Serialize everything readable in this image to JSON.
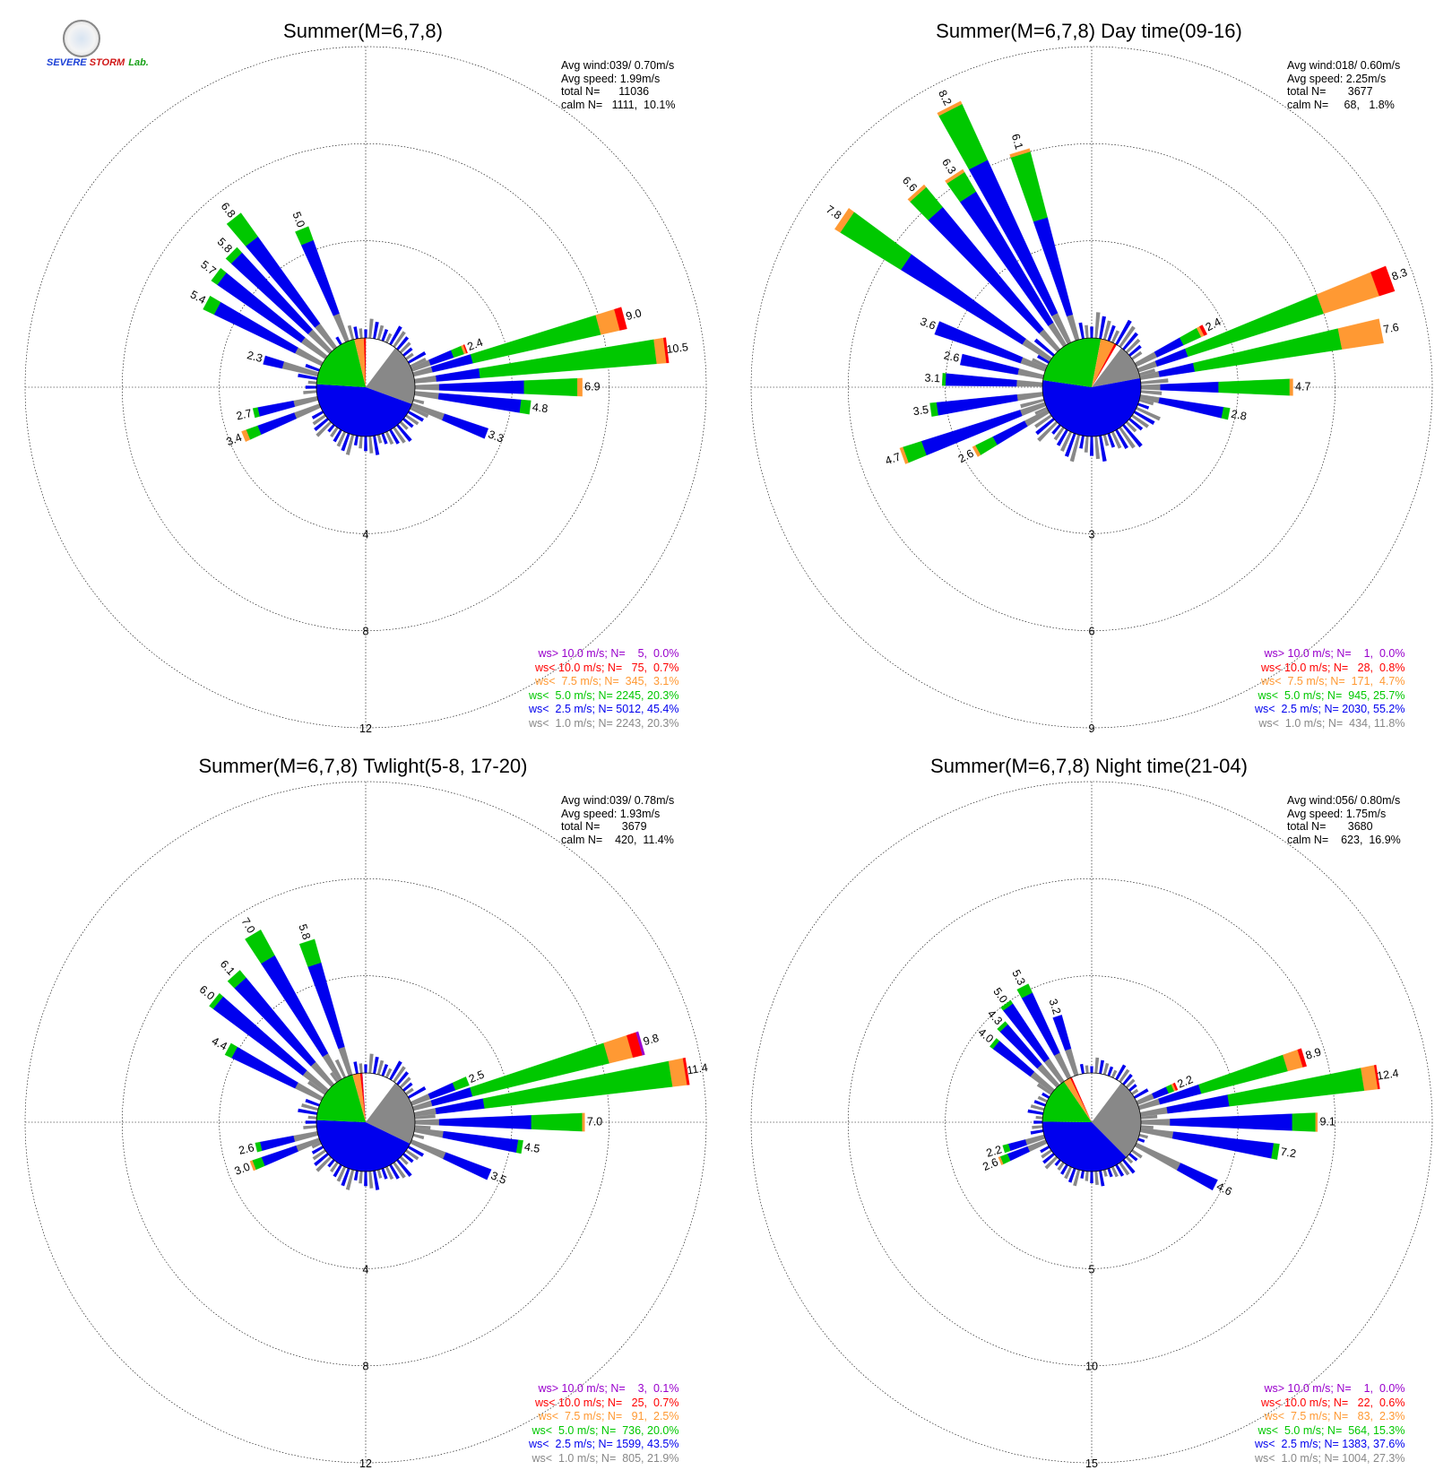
{
  "logo": {
    "text_severe": "SEVERE",
    "text_storm": "STORM",
    "text_lab": "Lab."
  },
  "colors": {
    "calm": "#888888",
    "ws_lt_1": "#888888",
    "ws_lt_2_5": "#0000ee",
    "ws_lt_5": "#00c800",
    "ws_lt_7_5": "#ff9933",
    "ws_lt_10": "#ff0000",
    "ws_gt_10": "#9900cc",
    "grid": "#000000"
  },
  "chart_data": [
    {
      "type": "windrose",
      "title": "Summer(M=6,7,8)",
      "stats": [
        "Avg wind:039/ 0.70m/s",
        "Avg speed: 1.99m/s",
        "total N=      11036",
        "calm N=   1111,  10.1%"
      ],
      "ring_labels": [
        "4",
        "8",
        "12"
      ],
      "ring_values": [
        4,
        8,
        12
      ],
      "calm_pie": [
        {
          "class": "ws<1.0",
          "percent": 20.3
        },
        {
          "class": "ws<2.5",
          "percent": 45.4
        },
        {
          "class": "ws<5.0",
          "percent": 20.3
        },
        {
          "class": "ws<7.5",
          "percent": 3.1
        },
        {
          "class": "ws<10.0",
          "percent": 0.7
        },
        {
          "class": "ws>10.0",
          "percent": 0.0
        }
      ],
      "sectors": [
        {
          "dir": 69,
          "total": 2.4,
          "label": "2.4",
          "parts": [
            0.8,
            1.0,
            0.45,
            0.1,
            0.05,
            0
          ]
        },
        {
          "dir": 75,
          "total": 9.0,
          "label": "9.0",
          "parts": [
            0.8,
            1.7,
            5.4,
            0.8,
            0.3,
            0
          ]
        },
        {
          "dir": 83,
          "total": 10.5,
          "label": "10.5",
          "parts": [
            0.9,
            1.8,
            7.3,
            0.4,
            0.1,
            0
          ]
        },
        {
          "dir": 90,
          "total": 6.9,
          "label": "6.9",
          "parts": [
            1.0,
            3.5,
            2.2,
            0.2,
            0,
            0
          ]
        },
        {
          "dir": 97,
          "total": 4.8,
          "label": "4.8",
          "parts": [
            1.0,
            3.4,
            0.4,
            0,
            0,
            0
          ]
        },
        {
          "dir": 111,
          "total": 3.3,
          "label": "3.3",
          "parts": [
            1.4,
            1.9,
            0,
            0,
            0,
            0
          ]
        },
        {
          "dir": 322,
          "total": 6.8,
          "label": "6.8",
          "parts": [
            1.2,
            4.4,
            1.2,
            0,
            0,
            0
          ]
        },
        {
          "dir": 338,
          "total": 5.0,
          "label": "5.0",
          "parts": [
            1.2,
            3.2,
            0.6,
            0,
            0,
            0
          ]
        },
        {
          "dir": 315,
          "total": 5.8,
          "label": "5.8",
          "parts": [
            1.2,
            4.3,
            0.3,
            0,
            0,
            0
          ]
        },
        {
          "dir": 307,
          "total": 5.7,
          "label": "5.7",
          "parts": [
            1.2,
            4.2,
            0.3,
            0,
            0,
            0
          ]
        },
        {
          "dir": 298,
          "total": 5.4,
          "label": "5.4",
          "parts": [
            1.2,
            3.7,
            0.5,
            0,
            0,
            0
          ]
        },
        {
          "dir": 285,
          "total": 2.3,
          "label": "2.3",
          "parts": [
            1.5,
            0.8,
            0,
            0,
            0,
            0
          ]
        },
        {
          "dir": 257,
          "total": 2.7,
          "label": "2.7",
          "parts": [
            1.0,
            1.5,
            0.2,
            0,
            0,
            0
          ]
        },
        {
          "dir": 248,
          "total": 3.4,
          "label": "3.4",
          "parts": [
            1.1,
            1.6,
            0.5,
            0.2,
            0,
            0
          ]
        }
      ],
      "legend": [
        {
          "text": "ws> 10.0 m/s; N=    5,  0.0%",
          "color": "ws_gt_10"
        },
        {
          "text": "ws< 10.0 m/s; N=   75,  0.7%",
          "color": "ws_lt_10"
        },
        {
          "text": "ws<  7.5 m/s; N=  345,  3.1%",
          "color": "ws_lt_7_5"
        },
        {
          "text": "ws<  5.0 m/s; N= 2245, 20.3%",
          "color": "ws_lt_5"
        },
        {
          "text": "ws<  2.5 m/s; N= 5012, 45.4%",
          "color": "ws_lt_2_5"
        },
        {
          "text": "ws<  1.0 m/s; N= 2243, 20.3%",
          "color": "ws_lt_1"
        }
      ]
    },
    {
      "type": "windrose",
      "title": "Summer(M=6,7,8) Day time(09-16)",
      "stats": [
        "Avg wind:018/ 0.60m/s",
        "Avg speed: 2.25m/s",
        "total N=       3677",
        "calm N=     68,   1.8%"
      ],
      "ring_labels": [
        "3",
        "6",
        "9"
      ],
      "ring_values": [
        3,
        6,
        9
      ],
      "calm_pie": [
        {
          "class": "ws<1.0",
          "percent": 11.8
        },
        {
          "class": "ws<2.5",
          "percent": 55.2
        },
        {
          "class": "ws<5.0",
          "percent": 25.7
        },
        {
          "class": "ws<7.5",
          "percent": 4.7
        },
        {
          "class": "ws<10.0",
          "percent": 0.8
        },
        {
          "class": "ws>10.0",
          "percent": 0.0
        }
      ],
      "sectors": [
        {
          "dir": 63,
          "total": 2.4,
          "label": "2.4",
          "parts": [
            0.7,
            0.9,
            0.6,
            0.1,
            0.1,
            0
          ]
        },
        {
          "dir": 70,
          "total": 8.3,
          "label": "8.3",
          "parts": [
            0.6,
            1.0,
            4.4,
            1.8,
            0.5,
            0
          ]
        },
        {
          "dir": 79,
          "total": 7.6,
          "label": "7.6",
          "parts": [
            0.6,
            1.1,
            4.6,
            1.3,
            0,
            0
          ]
        },
        {
          "dir": 90,
          "total": 4.7,
          "label": "4.7",
          "parts": [
            0.6,
            1.8,
            2.2,
            0.1,
            0,
            0
          ]
        },
        {
          "dir": 101,
          "total": 2.8,
          "label": "2.8",
          "parts": [
            0.6,
            2.0,
            0.2,
            0,
            0,
            0
          ]
        },
        {
          "dir": 333,
          "total": 8.2,
          "label": "8.2",
          "parts": [
            1.0,
            5.2,
            1.9,
            0.1,
            0,
            0
          ]
        },
        {
          "dir": 343,
          "total": 6.1,
          "label": "6.1",
          "parts": [
            0.8,
            3.1,
            2.1,
            0.1,
            0,
            0
          ]
        },
        {
          "dir": 327,
          "total": 6.3,
          "label": "6.3",
          "parts": [
            0.8,
            4.7,
            0.7,
            0.1,
            0,
            0
          ]
        },
        {
          "dir": 318,
          "total": 6.6,
          "label": "6.6",
          "parts": [
            0.8,
            4.9,
            0.8,
            0.1,
            0,
            0
          ]
        },
        {
          "dir": 304,
          "total": 7.8,
          "label": "7.8",
          "parts": [
            1.0,
            4.4,
            2.2,
            0.2,
            0,
            0
          ]
        },
        {
          "dir": 291,
          "total": 3.6,
          "label": "3.6",
          "parts": [
            0.8,
            2.8,
            0,
            0,
            0,
            0
          ]
        },
        {
          "dir": 282,
          "total": 2.6,
          "label": "2.6",
          "parts": [
            0.8,
            1.8,
            0,
            0,
            0,
            0
          ]
        },
        {
          "dir": 273,
          "total": 3.1,
          "label": "3.1",
          "parts": [
            0.8,
            2.2,
            0.1,
            0,
            0,
            0
          ]
        },
        {
          "dir": 262,
          "total": 3.5,
          "label": "3.5",
          "parts": [
            0.8,
            2.5,
            0.2,
            0,
            0,
            0
          ]
        },
        {
          "dir": 250,
          "total": 4.7,
          "label": "4.7",
          "parts": [
            0.8,
            3.2,
            0.6,
            0.1,
            0,
            0
          ]
        },
        {
          "dir": 241,
          "total": 2.6,
          "label": "2.6",
          "parts": [
            0.8,
            1.1,
            0.6,
            0.1,
            0,
            0
          ]
        }
      ],
      "legend": [
        {
          "text": "ws> 10.0 m/s; N=    1,  0.0%",
          "color": "ws_gt_10"
        },
        {
          "text": "ws< 10.0 m/s; N=   28,  0.8%",
          "color": "ws_lt_10"
        },
        {
          "text": "ws<  7.5 m/s; N=  171,  4.7%",
          "color": "ws_lt_7_5"
        },
        {
          "text": "ws<  5.0 m/s; N=  945, 25.7%",
          "color": "ws_lt_5"
        },
        {
          "text": "ws<  2.5 m/s; N= 2030, 55.2%",
          "color": "ws_lt_2_5"
        },
        {
          "text": "ws<  1.0 m/s; N=  434, 11.8%",
          "color": "ws_lt_1"
        }
      ]
    },
    {
      "type": "windrose",
      "title": "Summer(M=6,7,8) Twlight(5-8, 17-20)",
      "stats": [
        "Avg wind:039/ 0.78m/s",
        "Avg speed: 1.93m/s",
        "total N=       3679",
        "calm N=    420,  11.4%"
      ],
      "ring_labels": [
        "4",
        "8",
        "12"
      ],
      "ring_values": [
        4,
        8,
        12
      ],
      "calm_pie": [
        {
          "class": "ws<1.0",
          "percent": 21.9
        },
        {
          "class": "ws<2.5",
          "percent": 43.5
        },
        {
          "class": "ws<5.0",
          "percent": 20.0
        },
        {
          "class": "ws<7.5",
          "percent": 2.5
        },
        {
          "class": "ws<10.0",
          "percent": 0.7
        },
        {
          "class": "ws>10.0",
          "percent": 0.1
        }
      ],
      "sectors": [
        {
          "dir": 68,
          "total": 2.5,
          "label": "2.5",
          "parts": [
            0.8,
            1.1,
            0.6,
            0,
            0,
            0
          ]
        },
        {
          "dir": 74,
          "total": 9.8,
          "label": "9.8",
          "parts": [
            0.8,
            1.7,
            5.8,
            1.0,
            0.4,
            0.1
          ]
        },
        {
          "dir": 81,
          "total": 11.4,
          "label": "11.4",
          "parts": [
            0.9,
            2.0,
            7.8,
            0.6,
            0.1,
            0
          ]
        },
        {
          "dir": 90,
          "total": 7.0,
          "label": "7.0",
          "parts": [
            1.0,
            3.8,
            2.1,
            0.1,
            0,
            0
          ]
        },
        {
          "dir": 99,
          "total": 4.5,
          "label": "4.5",
          "parts": [
            1.2,
            3.1,
            0.2,
            0,
            0,
            0
          ]
        },
        {
          "dir": 113,
          "total": 3.5,
          "label": "3.5",
          "parts": [
            1.5,
            2.0,
            0,
            0,
            0,
            0
          ]
        },
        {
          "dir": 329,
          "total": 7.0,
          "label": "7.0",
          "parts": [
            1.2,
            4.6,
            1.2,
            0,
            0,
            0
          ]
        },
        {
          "dir": 342,
          "total": 5.8,
          "label": "5.8",
          "parts": [
            1.2,
            3.6,
            1.0,
            0,
            0,
            0
          ]
        },
        {
          "dir": 318,
          "total": 6.1,
          "label": "6.1",
          "parts": [
            1.2,
            4.5,
            0.4,
            0,
            0,
            0
          ]
        },
        {
          "dir": 309,
          "total": 6.0,
          "label": "6.0",
          "parts": [
            1.2,
            4.6,
            0.2,
            0,
            0,
            0
          ]
        },
        {
          "dir": 298,
          "total": 4.4,
          "label": "4.4",
          "parts": [
            1.2,
            2.9,
            0.3,
            0,
            0,
            0
          ]
        },
        {
          "dir": 257,
          "total": 2.6,
          "label": "2.6",
          "parts": [
            1.0,
            1.4,
            0.2,
            0,
            0,
            0
          ]
        },
        {
          "dir": 249,
          "total": 3.0,
          "label": "3.0",
          "parts": [
            1.0,
            1.5,
            0.4,
            0.1,
            0,
            0
          ]
        }
      ],
      "legend": [
        {
          "text": "ws> 10.0 m/s; N=    3,  0.1%",
          "color": "ws_gt_10"
        },
        {
          "text": "ws< 10.0 m/s; N=   25,  0.7%",
          "color": "ws_lt_10"
        },
        {
          "text": "ws<  7.5 m/s; N=   91,  2.5%",
          "color": "ws_lt_7_5"
        },
        {
          "text": "ws<  5.0 m/s; N=  736, 20.0%",
          "color": "ws_lt_5"
        },
        {
          "text": "ws<  2.5 m/s; N= 1599, 43.5%",
          "color": "ws_lt_2_5"
        },
        {
          "text": "ws<  1.0 m/s; N=  805, 21.9%",
          "color": "ws_lt_1"
        }
      ]
    },
    {
      "type": "windrose",
      "title": "Summer(M=6,7,8) Night time(21-04)",
      "stats": [
        "Avg wind:056/ 0.80m/s",
        "Avg speed: 1.75m/s",
        "total N=       3680",
        "calm N=    623,  16.9%"
      ],
      "ring_labels": [
        "5",
        "10",
        "15"
      ],
      "ring_values": [
        5,
        10,
        15
      ],
      "calm_pie": [
        {
          "class": "ws<1.0",
          "percent": 27.3
        },
        {
          "class": "ws<2.5",
          "percent": 37.6
        },
        {
          "class": "ws<5.0",
          "percent": 15.3
        },
        {
          "class": "ws<7.5",
          "percent": 2.3
        },
        {
          "class": "ws<10.0",
          "percent": 0.6
        },
        {
          "class": "ws>10.0",
          "percent": 0.0
        }
      ],
      "sectors": [
        {
          "dir": 67,
          "total": 2.2,
          "label": "2.2",
          "parts": [
            0.9,
            0.8,
            0.3,
            0.1,
            0.1,
            0
          ]
        },
        {
          "dir": 73,
          "total": 8.9,
          "label": "8.9",
          "parts": [
            1.1,
            2.2,
            4.6,
            0.8,
            0.2,
            0
          ]
        },
        {
          "dir": 81,
          "total": 12.4,
          "label": "12.4",
          "parts": [
            1.4,
            3.2,
            7.0,
            0.7,
            0.1,
            0
          ]
        },
        {
          "dir": 90,
          "total": 9.1,
          "label": "9.1",
          "parts": [
            1.5,
            6.3,
            1.2,
            0.1,
            0,
            0
          ]
        },
        {
          "dir": 99,
          "total": 7.2,
          "label": "7.2",
          "parts": [
            1.7,
            5.2,
            0.3,
            0,
            0,
            0
          ]
        },
        {
          "dir": 117,
          "total": 4.6,
          "label": "4.6",
          "parts": [
            2.5,
            2.1,
            0,
            0,
            0,
            0
          ]
        },
        {
          "dir": 333,
          "total": 5.3,
          "label": "5.3",
          "parts": [
            1.4,
            3.4,
            0.5,
            0,
            0,
            0
          ]
        },
        {
          "dir": 342,
          "total": 3.2,
          "label": "3.2",
          "parts": [
            1.4,
            1.8,
            0,
            0,
            0,
            0
          ]
        },
        {
          "dir": 324,
          "total": 5.0,
          "label": "5.0",
          "parts": [
            1.4,
            3.4,
            0.2,
            0,
            0,
            0
          ]
        },
        {
          "dir": 317,
          "total": 4.3,
          "label": "4.3",
          "parts": [
            1.4,
            2.7,
            0.2,
            0,
            0,
            0
          ]
        },
        {
          "dir": 309,
          "total": 4.0,
          "label": "4.0",
          "parts": [
            1.4,
            2.4,
            0.2,
            0,
            0,
            0
          ]
        },
        {
          "dir": 253,
          "total": 2.2,
          "label": "2.2",
          "parts": [
            1.0,
            0.9,
            0.3,
            0,
            0,
            0
          ]
        },
        {
          "dir": 247,
          "total": 2.6,
          "label": "2.6",
          "parts": [
            1.0,
            1.1,
            0.4,
            0.1,
            0,
            0
          ]
        }
      ],
      "legend": [
        {
          "text": "ws> 10.0 m/s; N=    1,  0.0%",
          "color": "ws_gt_10"
        },
        {
          "text": "ws< 10.0 m/s; N=   22,  0.6%",
          "color": "ws_lt_10"
        },
        {
          "text": "ws<  7.5 m/s; N=   83,  2.3%",
          "color": "ws_lt_7_5"
        },
        {
          "text": "ws<  5.0 m/s; N=  564, 15.3%",
          "color": "ws_lt_5"
        },
        {
          "text": "ws<  2.5 m/s; N= 1383, 37.6%",
          "color": "ws_lt_2_5"
        },
        {
          "text": "ws<  1.0 m/s; N= 1004, 27.3%",
          "color": "ws_lt_1"
        }
      ]
    }
  ]
}
